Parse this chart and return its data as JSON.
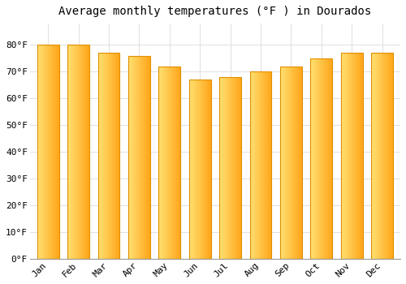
{
  "title": "Average monthly temperatures (°F ) in Dourados",
  "months": [
    "Jan",
    "Feb",
    "Mar",
    "Apr",
    "May",
    "Jun",
    "Jul",
    "Aug",
    "Sep",
    "Oct",
    "Nov",
    "Dec"
  ],
  "values": [
    80,
    80,
    77,
    76,
    72,
    67,
    68,
    70,
    72,
    75,
    77,
    77
  ],
  "ylim": [
    0,
    88
  ],
  "yticks": [
    0,
    10,
    20,
    30,
    40,
    50,
    60,
    70,
    80
  ],
  "ytick_labels": [
    "0°F",
    "10°F",
    "20°F",
    "30°F",
    "40°F",
    "50°F",
    "60°F",
    "70°F",
    "80°F"
  ],
  "bar_color_left": "#FFD966",
  "bar_color_right": "#FFA500",
  "bar_edge_color": "#E09000",
  "background_color": "#FFFFFF",
  "grid_color": "#E0E0E0",
  "title_fontsize": 10,
  "tick_fontsize": 8,
  "title_font": "monospace",
  "tick_font": "monospace"
}
